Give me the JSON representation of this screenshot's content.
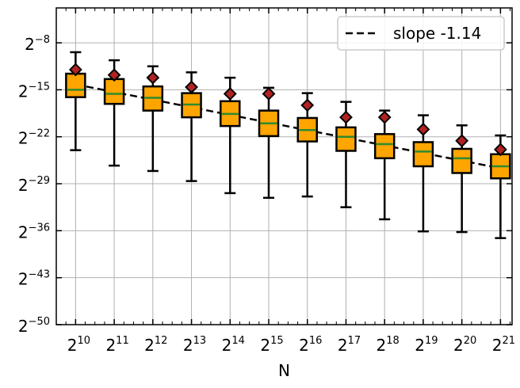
{
  "chart_data": {
    "type": "box",
    "title": "",
    "xlabel": "N",
    "ylabel": "",
    "x_scale": "log2",
    "y_scale": "log2",
    "x": [
      1024,
      2048,
      4096,
      8192,
      16384,
      32768,
      65536,
      131072,
      262144,
      524288,
      1048576,
      2097152
    ],
    "x_tick_labels": [
      {
        "base": "2",
        "exp": "10"
      },
      {
        "base": "2",
        "exp": "11"
      },
      {
        "base": "2",
        "exp": "12"
      },
      {
        "base": "2",
        "exp": "13"
      },
      {
        "base": "2",
        "exp": "14"
      },
      {
        "base": "2",
        "exp": "15"
      },
      {
        "base": "2",
        "exp": "16"
      },
      {
        "base": "2",
        "exp": "17"
      },
      {
        "base": "2",
        "exp": "18"
      },
      {
        "base": "2",
        "exp": "19"
      },
      {
        "base": "2",
        "exp": "20"
      },
      {
        "base": "2",
        "exp": "21"
      }
    ],
    "y_ticks_log2": [
      -8,
      -15,
      -22,
      -29,
      -36,
      -43,
      -50
    ],
    "y_tick_labels": [
      {
        "base": "2",
        "exp": "−8"
      },
      {
        "base": "2",
        "exp": "−15"
      },
      {
        "base": "2",
        "exp": "−22"
      },
      {
        "base": "2",
        "exp": "−29"
      },
      {
        "base": "2",
        "exp": "−36"
      },
      {
        "base": "2",
        "exp": "−43"
      },
      {
        "base": "2",
        "exp": "−50"
      }
    ],
    "ylim_log2": [
      -50,
      -2.8
    ],
    "xlim_log2": [
      9.5,
      21.3
    ],
    "boxes_log2": [
      {
        "whisker_low": -24,
        "q1": -16.1,
        "median": -15,
        "q3": -12.6,
        "whisker_high": -9.4,
        "mean": -12
      },
      {
        "whisker_low": -26.3,
        "q1": -17.1,
        "median": -15.6,
        "q3": -13.4,
        "whisker_high": -10.6,
        "mean": -12.8
      },
      {
        "whisker_low": -27.1,
        "q1": -18.1,
        "median": -16.2,
        "q3": -14.5,
        "whisker_high": -11.5,
        "mean": -13.2
      },
      {
        "whisker_low": -28.6,
        "q1": -19.1,
        "median": -17.2,
        "q3": -15.5,
        "whisker_high": -12.4,
        "mean": -14.6
      },
      {
        "whisker_low": -30.4,
        "q1": -20.4,
        "median": -18.6,
        "q3": -16.7,
        "whisker_high": -13.2,
        "mean": -15.6
      },
      {
        "whisker_low": -31.1,
        "q1": -21.9,
        "median": -20,
        "q3": -18.1,
        "whisker_high": -14.7,
        "mean": -15.6
      },
      {
        "whisker_low": -30.9,
        "q1": -22.7,
        "median": -21,
        "q3": -19.2,
        "whisker_high": -15.5,
        "mean": -17.3
      },
      {
        "whisker_low": -32.5,
        "q1": -24.1,
        "median": -22,
        "q3": -20.6,
        "whisker_high": -16.8,
        "mean": -19.1
      },
      {
        "whisker_low": -34.3,
        "q1": -25.2,
        "median": -23.1,
        "q3": -21.6,
        "whisker_high": -18.1,
        "mean": -19.1
      },
      {
        "whisker_low": -36.1,
        "q1": -26.4,
        "median": -24.2,
        "q3": -22.8,
        "whisker_high": -18.8,
        "mean": -20.9
      },
      {
        "whisker_low": -36.2,
        "q1": -27.4,
        "median": -25.2,
        "q3": -23.8,
        "whisker_high": -20.3,
        "mean": -22.6
      },
      {
        "whisker_low": -37.1,
        "q1": -28.2,
        "median": -26.4,
        "q3": -24.6,
        "whisker_high": -21.8,
        "mean": -23.9
      }
    ],
    "fit_line": {
      "label": "slope -1.14",
      "slope": -1.14,
      "x_log2": [
        10,
        21
      ],
      "y_log2": [
        -14.2,
        -26.7
      ]
    },
    "legend": {
      "entries": [
        "slope -1.14"
      ],
      "placement": "top-right"
    },
    "grid": true,
    "colors": {
      "box_fill": "#ffa500",
      "box_edge": "#000000",
      "median": "#2e8b2e",
      "mean_marker": "#b22222",
      "fit_line": "#000000",
      "grid": "#b0b0b0"
    }
  }
}
